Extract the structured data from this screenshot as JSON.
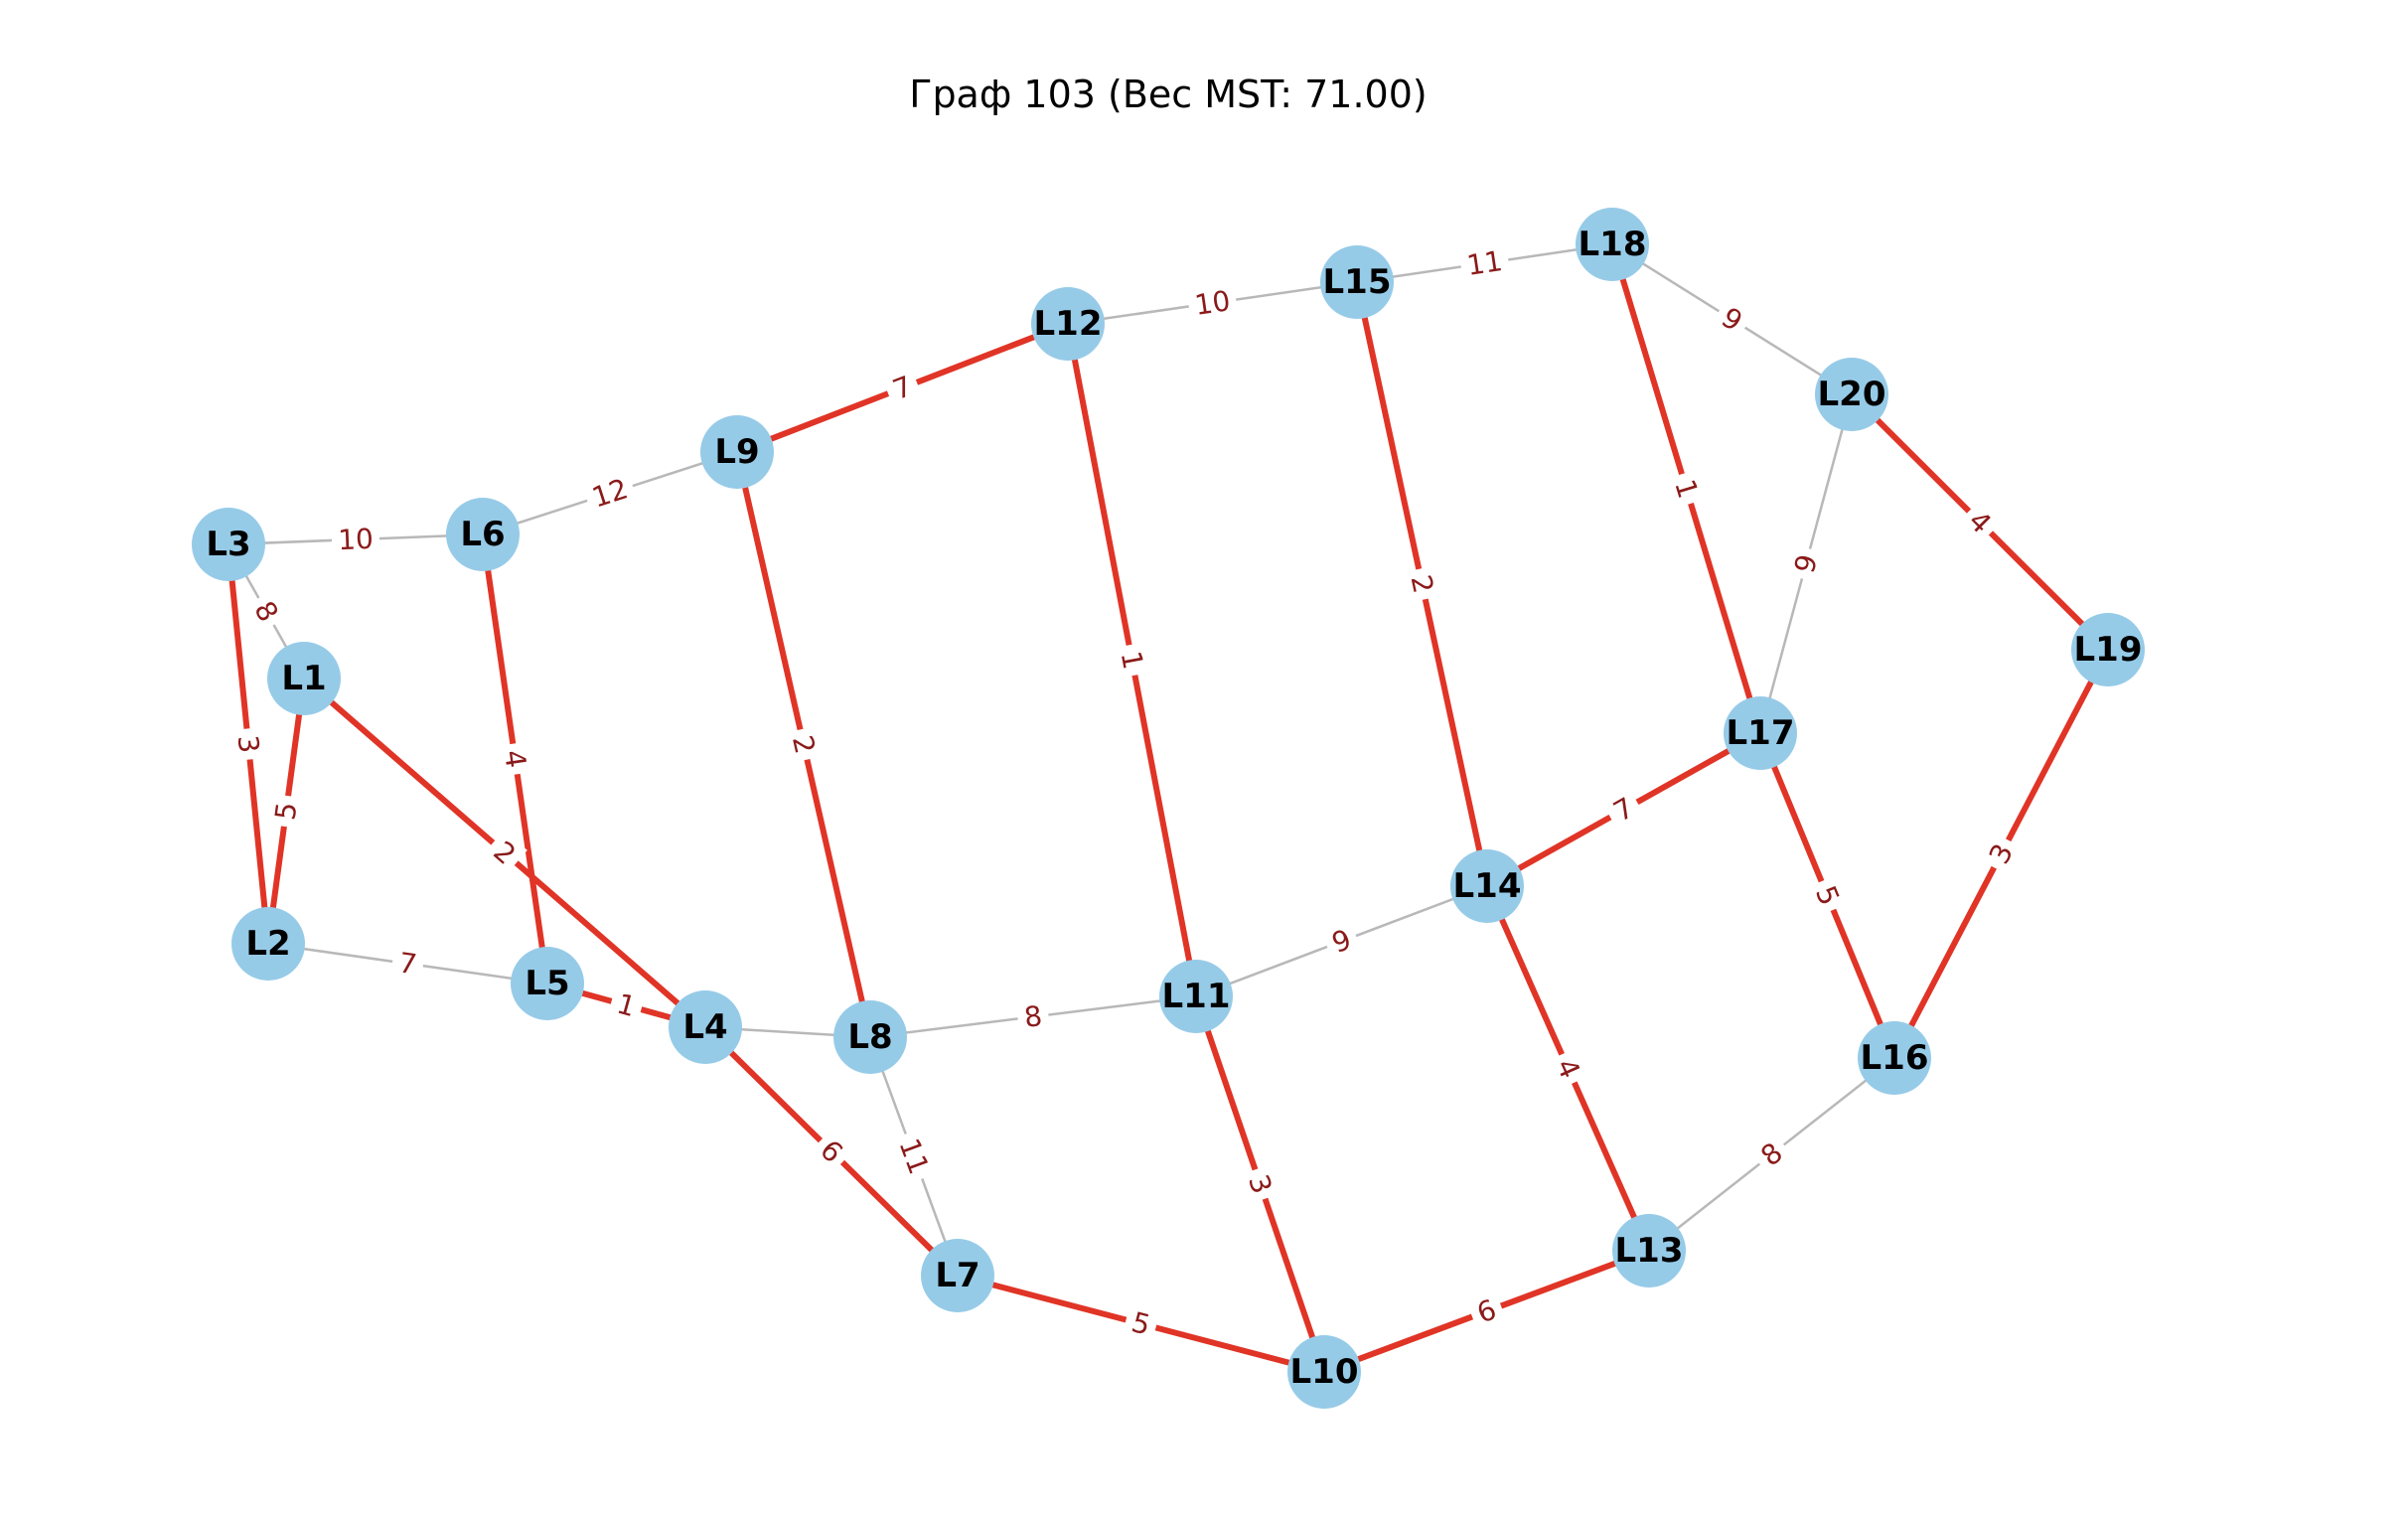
{
  "title": "Граф 103 (Вес MST: 71.00)",
  "colors": {
    "node_fill": "#96cbe8",
    "mst_edge": "#e03426",
    "normal_edge": "#b8b8b8",
    "edge_label": "#8b1a1a",
    "node_label": "#000000"
  },
  "nodes": [
    "L1",
    "L2",
    "L3",
    "L4",
    "L5",
    "L6",
    "L7",
    "L8",
    "L9",
    "L10",
    "L11",
    "L12",
    "L13",
    "L14",
    "L15",
    "L16",
    "L17",
    "L18",
    "L19",
    "L20"
  ],
  "edges": [
    {
      "source": "L3",
      "target": "L6",
      "weight": "10",
      "mst": false
    },
    {
      "source": "L6",
      "target": "L9",
      "weight": "12",
      "mst": false
    },
    {
      "source": "L9",
      "target": "L12",
      "weight": "7",
      "mst": true
    },
    {
      "source": "L12",
      "target": "L15",
      "weight": "10",
      "mst": false
    },
    {
      "source": "L15",
      "target": "L18",
      "weight": "11",
      "mst": false
    },
    {
      "source": "L18",
      "target": "L20",
      "weight": "9",
      "mst": false
    },
    {
      "source": "L20",
      "target": "L19",
      "weight": "4",
      "mst": true
    },
    {
      "source": "L3",
      "target": "L1",
      "weight": "8",
      "mst": false
    },
    {
      "source": "L3",
      "target": "L2",
      "weight": "3",
      "mst": true
    },
    {
      "source": "L1",
      "target": "L2",
      "weight": "5",
      "mst": true
    },
    {
      "source": "L1",
      "target": "L4",
      "weight": "2",
      "mst": true
    },
    {
      "source": "L6",
      "target": "L5",
      "weight": "4",
      "mst": true
    },
    {
      "source": "L9",
      "target": "L8",
      "weight": "2",
      "mst": true
    },
    {
      "source": "L12",
      "target": "L11",
      "weight": "1",
      "mst": true
    },
    {
      "source": "L15",
      "target": "L14",
      "weight": "2",
      "mst": true
    },
    {
      "source": "L18",
      "target": "L17",
      "weight": "1",
      "mst": true
    },
    {
      "source": "L20",
      "target": "L17",
      "weight": "9",
      "mst": false
    },
    {
      "source": "L2",
      "target": "L5",
      "weight": "7",
      "mst": false
    },
    {
      "source": "L5",
      "target": "L4",
      "weight": "1",
      "mst": true
    },
    {
      "source": "L4",
      "target": "L8",
      "weight": "",
      "mst": false
    },
    {
      "source": "L8",
      "target": "L11",
      "weight": "8",
      "mst": false
    },
    {
      "source": "L11",
      "target": "L14",
      "weight": "9",
      "mst": false
    },
    {
      "source": "L14",
      "target": "L17",
      "weight": "7",
      "mst": true
    },
    {
      "source": "L17",
      "target": "L16",
      "weight": "5",
      "mst": true
    },
    {
      "source": "L19",
      "target": "L16",
      "weight": "3",
      "mst": true
    },
    {
      "source": "L4",
      "target": "L7",
      "weight": "6",
      "mst": true
    },
    {
      "source": "L8",
      "target": "L7",
      "weight": "11",
      "mst": false
    },
    {
      "source": "L11",
      "target": "L10",
      "weight": "3",
      "mst": true
    },
    {
      "source": "L14",
      "target": "L13",
      "weight": "4",
      "mst": true
    },
    {
      "source": "L16",
      "target": "L13",
      "weight": "8",
      "mst": false
    },
    {
      "source": "L7",
      "target": "L10",
      "weight": "5",
      "mst": true
    },
    {
      "source": "L10",
      "target": "L13",
      "weight": "6",
      "mst": true
    }
  ]
}
